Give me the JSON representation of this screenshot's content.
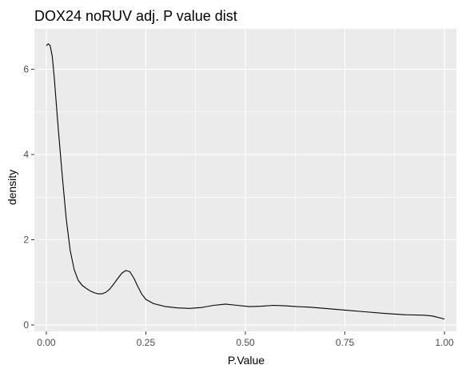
{
  "chart_data": {
    "type": "line",
    "geom": "density",
    "title": "DOX24 noRUV adj. P value dist",
    "xlabel": "P.Value",
    "ylabel": "density",
    "xlim": [
      -0.03,
      1.03
    ],
    "ylim": [
      -0.15,
      6.95
    ],
    "x_ticks": [
      0.0,
      0.25,
      0.5,
      0.75,
      1.0
    ],
    "x_tick_labels": [
      "0.00",
      "0.25",
      "0.50",
      "0.75",
      "1.00"
    ],
    "x_minor_ticks": [
      0.125,
      0.375,
      0.625,
      0.875
    ],
    "y_ticks": [
      0,
      2,
      4,
      6
    ],
    "y_tick_labels": [
      "0",
      "2",
      "4",
      "6"
    ],
    "y_minor_ticks": [
      1,
      3,
      5
    ],
    "grid": true,
    "legend": "none",
    "colors": {
      "panel": "#ebebeb",
      "grid": "#ffffff",
      "line": "#000000",
      "tick": "#333333",
      "tick_label": "#4d4d4d"
    },
    "series": [
      {
        "x": [
          0.0,
          0.005,
          0.01,
          0.015,
          0.02,
          0.025,
          0.03,
          0.04,
          0.05,
          0.06,
          0.07,
          0.08,
          0.09,
          0.1,
          0.11,
          0.12,
          0.13,
          0.14,
          0.15,
          0.16,
          0.17,
          0.18,
          0.19,
          0.2,
          0.21,
          0.22,
          0.23,
          0.24,
          0.25,
          0.27,
          0.3,
          0.33,
          0.36,
          0.39,
          0.42,
          0.45,
          0.48,
          0.51,
          0.54,
          0.57,
          0.6,
          0.63,
          0.66,
          0.7,
          0.75,
          0.8,
          0.85,
          0.9,
          0.95,
          0.97,
          1.0
        ],
        "values": [
          6.55,
          6.6,
          6.55,
          6.3,
          5.8,
          5.2,
          4.6,
          3.5,
          2.5,
          1.75,
          1.3,
          1.05,
          0.93,
          0.86,
          0.8,
          0.76,
          0.73,
          0.73,
          0.77,
          0.85,
          0.97,
          1.1,
          1.22,
          1.28,
          1.25,
          1.1,
          0.9,
          0.72,
          0.6,
          0.5,
          0.43,
          0.4,
          0.39,
          0.41,
          0.46,
          0.49,
          0.46,
          0.43,
          0.44,
          0.46,
          0.45,
          0.43,
          0.42,
          0.39,
          0.35,
          0.31,
          0.27,
          0.24,
          0.23,
          0.21,
          0.14
        ]
      }
    ]
  }
}
